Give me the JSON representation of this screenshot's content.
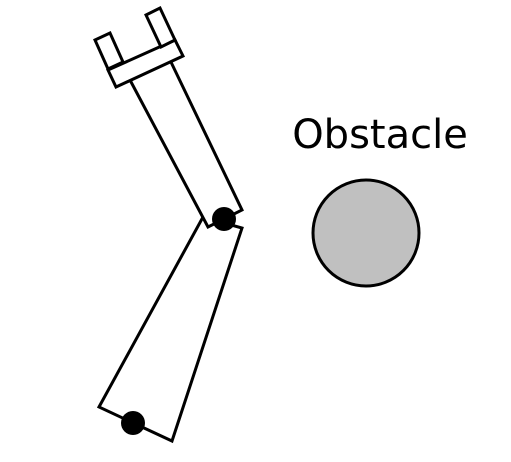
{
  "diagram": {
    "obstacle_label": "Obstacle",
    "colors": {
      "outline": "#000000",
      "link_fill": "#ffffff",
      "joint": "#000000",
      "obstacle_fill": "#c0c0c0",
      "background": "#ffffff"
    }
  }
}
